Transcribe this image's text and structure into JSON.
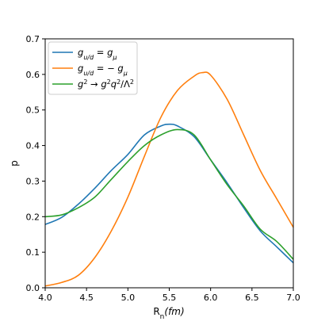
{
  "chart_data": {
    "type": "line",
    "xlabel": "R_n(fm)",
    "ylabel": "p",
    "xlim": [
      4.0,
      7.0
    ],
    "ylim": [
      0.0,
      0.7
    ],
    "xticks": [
      "4.0",
      "4.5",
      "5.0",
      "5.5",
      "6.0",
      "6.5",
      "7.0"
    ],
    "yticks": [
      "0.0",
      "0.1",
      "0.2",
      "0.3",
      "0.4",
      "0.5",
      "0.6",
      "0.7"
    ],
    "grid": false,
    "legend_position": "top-left",
    "series": [
      {
        "name": "g_{u/d} = g_μ",
        "color": "#1f77b4",
        "x": [
          4.0,
          4.2,
          4.4,
          4.6,
          4.8,
          5.0,
          5.2,
          5.4,
          5.5,
          5.6,
          5.8,
          6.0,
          6.2,
          6.4,
          6.6,
          6.8,
          7.0
        ],
        "y": [
          0.178,
          0.198,
          0.235,
          0.28,
          0.33,
          0.375,
          0.43,
          0.455,
          0.46,
          0.455,
          0.425,
          0.36,
          0.295,
          0.225,
          0.16,
          0.115,
          0.07
        ]
      },
      {
        "name": "g_{u/d} = − g_μ",
        "color": "#ff7f0e",
        "x": [
          4.0,
          4.2,
          4.4,
          4.6,
          4.8,
          5.0,
          5.2,
          5.4,
          5.6,
          5.8,
          5.9,
          6.0,
          6.2,
          6.4,
          6.6,
          6.8,
          7.0
        ],
        "y": [
          0.005,
          0.015,
          0.035,
          0.085,
          0.16,
          0.255,
          0.37,
          0.48,
          0.555,
          0.595,
          0.605,
          0.598,
          0.53,
          0.43,
          0.33,
          0.25,
          0.17
        ]
      },
      {
        "name": "g² → g²q²/Λ²",
        "color": "#2ca02c",
        "x": [
          4.0,
          4.2,
          4.4,
          4.6,
          4.8,
          5.0,
          5.2,
          5.4,
          5.6,
          5.8,
          6.0,
          6.2,
          6.4,
          6.6,
          6.8,
          7.0
        ],
        "y": [
          0.2,
          0.205,
          0.225,
          0.255,
          0.305,
          0.355,
          0.4,
          0.43,
          0.445,
          0.43,
          0.36,
          0.29,
          0.23,
          0.165,
          0.13,
          0.08
        ]
      }
    ]
  }
}
